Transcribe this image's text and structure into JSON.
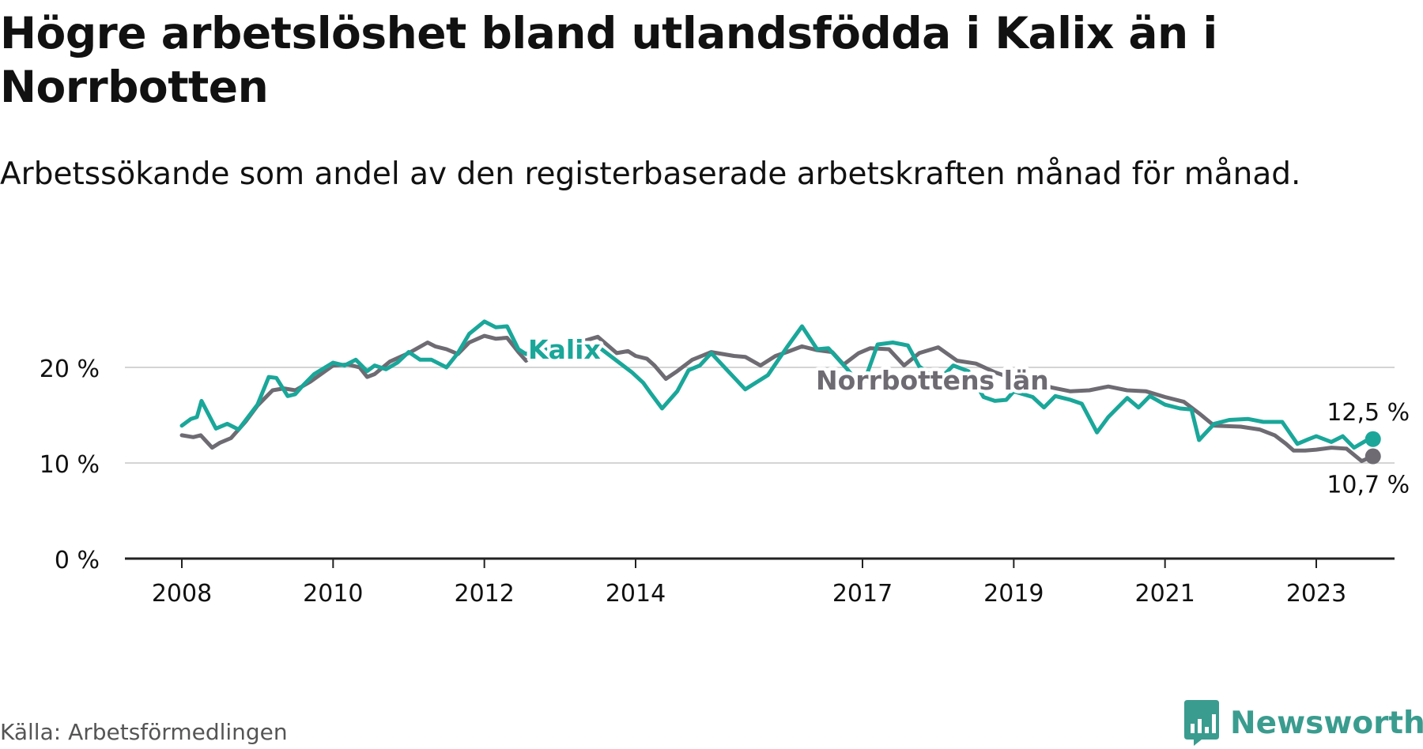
{
  "title": "Högre arbetslöshet bland utlandsfödda i Kalix än i Norrbotten",
  "subtitle": "Arbetssökande som andel av den registerbaserade arbetskraften månad för månad.",
  "source": "Källa: Arbetsförmedlingen",
  "brand": "Newsworthy",
  "colors": {
    "kalix": "#1aa79a",
    "norrbotten": "#6e6b73",
    "grid": "#d4d4d4",
    "axis": "#222222"
  },
  "chart_data": {
    "type": "line",
    "title": "Högre arbetslöshet bland utlandsfödda i Kalix än i Norrbotten",
    "xlabel": "",
    "ylabel": "",
    "ylim": [
      0,
      20
    ],
    "xlim": [
      2007.9,
      2024.3
    ],
    "y_ticks": [
      0,
      10,
      20
    ],
    "y_tick_labels": [
      "0 %",
      "10 %",
      "20 %"
    ],
    "x_ticks": [
      2008,
      2010,
      2012,
      2014,
      2017,
      2019,
      2021,
      2023
    ],
    "x_tick_labels": [
      "2008",
      "2010",
      "2012",
      "2014",
      "2017",
      "2019",
      "2021",
      "2023"
    ],
    "series": [
      {
        "name": "Kalix",
        "key": "kalix",
        "label": "Kalix",
        "end_label": "12,5 %",
        "x": [
          2008.0,
          2008.12,
          2008.2,
          2008.26,
          2008.45,
          2008.6,
          2008.75,
          2009.0,
          2009.15,
          2009.25,
          2009.4,
          2009.5,
          2009.6,
          2009.75,
          2010.0,
          2010.15,
          2010.3,
          2010.45,
          2010.55,
          2010.7,
          2010.85,
          2011.0,
          2011.15,
          2011.3,
          2011.5,
          2011.65,
          2011.8,
          2012.0,
          2012.15,
          2012.3,
          2012.45,
          2012.55,
          2012.65,
          2013.5,
          2013.95,
          2014.1,
          2014.2,
          2014.35,
          2014.55,
          2014.7,
          2014.85,
          2015.0,
          2015.2,
          2015.45,
          2015.75,
          2016.0,
          2016.2,
          2016.4,
          2016.55,
          2016.8,
          2016.95,
          2017.0,
          2017.2,
          2017.4,
          2017.6,
          2017.75,
          2018.0,
          2018.2,
          2018.4,
          2018.6,
          2018.75,
          2018.9,
          2019.0,
          2019.25,
          2019.4,
          2019.55,
          2019.75,
          2019.9,
          2020.1,
          2020.25,
          2020.5,
          2020.65,
          2020.8,
          2021.0,
          2021.2,
          2021.35,
          2021.45,
          2021.65,
          2021.85,
          2022.1,
          2022.3,
          2022.55,
          2022.75,
          2022.9,
          2023.0,
          2023.2,
          2023.35,
          2023.5,
          2023.65,
          2023.75
        ],
        "values": [
          13.9,
          14.6,
          14.8,
          16.5,
          13.6,
          14.1,
          13.5,
          16.1,
          19.0,
          18.9,
          17.0,
          17.2,
          18.1,
          19.3,
          20.5,
          20.2,
          20.8,
          19.6,
          20.2,
          19.8,
          20.5,
          21.6,
          20.8,
          20.8,
          20.0,
          21.5,
          23.5,
          24.8,
          24.2,
          24.3,
          21.9,
          21.4,
          21.8,
          22.2,
          19.5,
          18.4,
          17.3,
          15.7,
          17.5,
          19.7,
          20.2,
          21.5,
          19.8,
          17.7,
          19.2,
          22.1,
          24.3,
          21.9,
          22.0,
          19.8,
          18.3,
          18.0,
          22.4,
          22.6,
          22.3,
          20.1,
          18.6,
          20.2,
          19.6,
          16.9,
          16.5,
          16.6,
          17.5,
          16.9,
          15.8,
          17.0,
          16.6,
          16.2,
          13.2,
          14.8,
          16.8,
          15.8,
          17.0,
          16.1,
          15.7,
          15.6,
          12.4,
          14.1,
          14.5,
          14.6,
          14.3,
          14.3,
          12.0,
          12.5,
          12.8,
          12.2,
          12.8,
          11.6,
          12.3,
          12.5
        ]
      },
      {
        "name": "Norrbottens län",
        "key": "norrbotten",
        "label": "Norrbottens län",
        "end_label": "10,7 %",
        "x": [
          2008.0,
          2008.15,
          2008.25,
          2008.4,
          2008.5,
          2008.65,
          2008.85,
          2009.0,
          2009.2,
          2009.35,
          2009.5,
          2009.7,
          2010.0,
          2010.2,
          2010.35,
          2010.45,
          2010.55,
          2010.75,
          2011.0,
          2011.25,
          2011.35,
          2011.5,
          2011.65,
          2011.8,
          2012.0,
          2012.15,
          2012.3,
          2012.45,
          2012.55,
          2012.65,
          2013.5,
          2013.75,
          2013.9,
          2014.0,
          2014.15,
          2014.25,
          2014.4,
          2014.55,
          2014.75,
          2015.0,
          2015.3,
          2015.45,
          2015.65,
          2015.85,
          2016.0,
          2016.2,
          2016.4,
          2016.6,
          2016.75,
          2016.95,
          2017.1,
          2017.35,
          2017.55,
          2017.75,
          2018.0,
          2018.25,
          2018.5,
          2018.75,
          2019.0,
          2019.25,
          2019.5,
          2019.75,
          2020.0,
          2020.25,
          2020.5,
          2020.75,
          2021.0,
          2021.25,
          2021.45,
          2021.65,
          2022.0,
          2022.25,
          2022.45,
          2022.6,
          2022.7,
          2022.85,
          2023.0,
          2023.2,
          2023.4,
          2023.6,
          2023.75
        ],
        "values": [
          12.9,
          12.7,
          12.9,
          11.6,
          12.1,
          12.6,
          14.4,
          16.0,
          17.6,
          17.8,
          17.6,
          18.5,
          20.2,
          20.3,
          20.0,
          19.0,
          19.3,
          20.6,
          21.5,
          22.6,
          22.2,
          21.9,
          21.4,
          22.6,
          23.3,
          23.0,
          23.1,
          21.6,
          20.7,
          21.2,
          23.2,
          21.5,
          21.7,
          21.2,
          20.9,
          20.2,
          18.8,
          19.6,
          20.8,
          21.6,
          21.2,
          21.1,
          20.2,
          21.2,
          21.6,
          22.2,
          21.8,
          21.6,
          20.3,
          21.5,
          22.0,
          21.9,
          20.2,
          21.5,
          22.1,
          20.7,
          20.4,
          19.5,
          18.8,
          18.5,
          17.9,
          17.5,
          17.6,
          18.0,
          17.6,
          17.5,
          16.9,
          16.4,
          15.2,
          13.9,
          13.8,
          13.5,
          12.9,
          12.0,
          11.3,
          11.3,
          11.4,
          11.6,
          11.5,
          10.2,
          10.7
        ]
      }
    ]
  }
}
